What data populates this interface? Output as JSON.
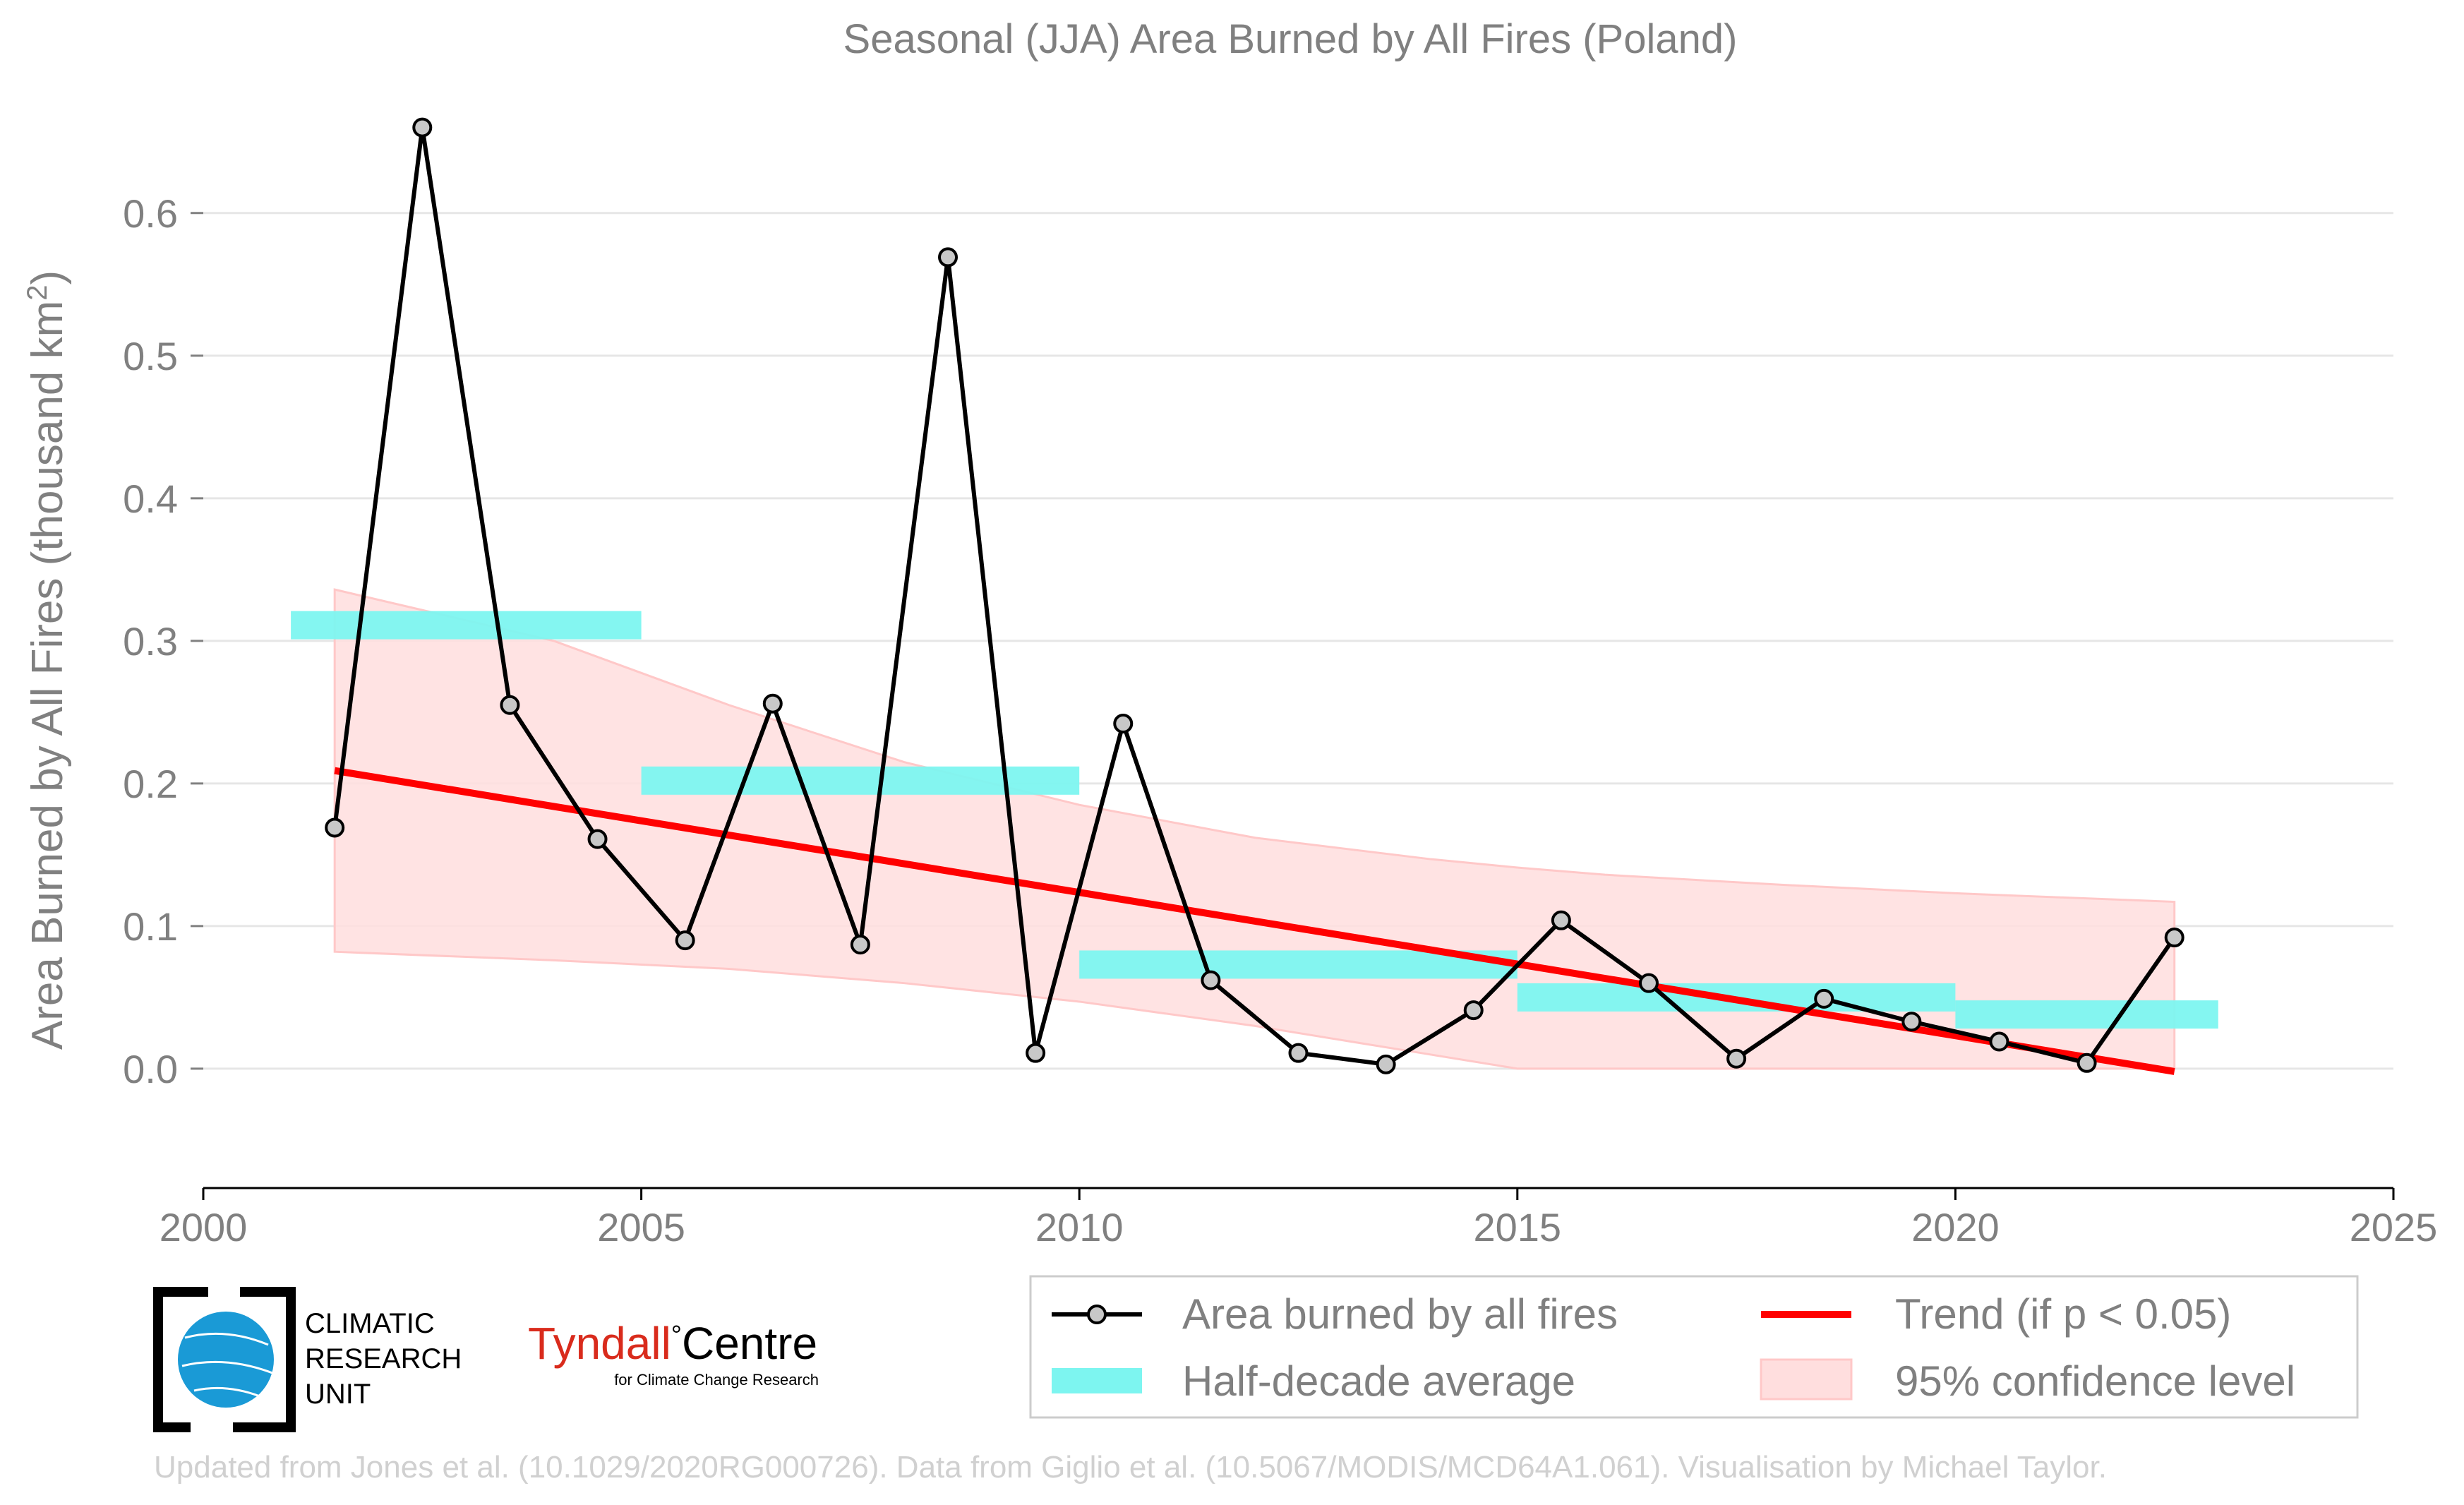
{
  "chart_data": {
    "type": "line",
    "title": "Seasonal (JJA) Area Burned by All Fires (Poland)",
    "ylabel_main": "Area Burned by All Fires (thousand km",
    "ylabel_sup": "2",
    "ylabel_end": ")",
    "xlim": [
      2000,
      2025
    ],
    "ylim": [
      -0.055,
      0.69
    ],
    "x_ticks": [
      2000,
      2005,
      2010,
      2015,
      2020,
      2025
    ],
    "x_tick_labels": [
      "2000",
      "2005",
      "2010",
      "2015",
      "2020",
      "2025"
    ],
    "y_ticks": [
      0.0,
      0.1,
      0.2,
      0.3,
      0.4,
      0.5,
      0.6
    ],
    "y_tick_labels": [
      "0.0",
      "0.1",
      "0.2",
      "0.3",
      "0.4",
      "0.5",
      "0.6"
    ],
    "grid": "horizontal",
    "legend_placement": "bottom-right",
    "series": [
      {
        "name": "Area burned by all fires",
        "color": "#000000",
        "marker_fill": "#c8c8c8",
        "x": [
          2001.5,
          2002.5,
          2003.5,
          2004.5,
          2005.5,
          2006.5,
          2007.5,
          2008.5,
          2009.5,
          2010.5,
          2011.5,
          2012.5,
          2013.5,
          2014.5,
          2015.5,
          2016.5,
          2017.5,
          2018.5,
          2019.5,
          2020.5,
          2021.5,
          2022.5
        ],
        "y": [
          0.169,
          0.66,
          0.255,
          0.161,
          0.09,
          0.256,
          0.087,
          0.569,
          0.011,
          0.242,
          0.062,
          0.011,
          0.003,
          0.041,
          0.104,
          0.06,
          0.007,
          0.049,
          0.033,
          0.019,
          0.004,
          0.092
        ]
      }
    ],
    "half_decade_average": {
      "name": "Half-decade average",
      "color": "#7df5f0",
      "segments": [
        {
          "x0": 2001.0,
          "x1": 2005.0,
          "y": 0.311
        },
        {
          "x0": 2005.0,
          "x1": 2010.0,
          "y": 0.202
        },
        {
          "x0": 2010.0,
          "x1": 2015.0,
          "y": 0.073
        },
        {
          "x0": 2015.0,
          "x1": 2020.0,
          "y": 0.05
        },
        {
          "x0": 2020.0,
          "x1": 2023.0,
          "y": 0.038
        }
      ]
    },
    "trend": {
      "name": "Trend (if p < 0.05)",
      "color": "#ff0000",
      "x": [
        2001.5,
        2022.5
      ],
      "y": [
        0.209,
        -0.002
      ]
    },
    "confidence_band": {
      "name": "95% confidence level",
      "color": "#ffc8c8",
      "x": [
        2001.5,
        2004,
        2006,
        2008,
        2010,
        2012,
        2014,
        2015,
        2016,
        2018,
        2020,
        2022.5
      ],
      "upper": [
        0.336,
        0.3,
        0.255,
        0.215,
        0.185,
        0.162,
        0.147,
        0.141,
        0.136,
        0.129,
        0.123,
        0.117
      ],
      "lower": [
        0.082,
        0.076,
        0.07,
        0.06,
        0.047,
        0.03,
        0.01,
        0.0,
        0.0,
        0.0,
        0.0,
        0.0
      ]
    }
  },
  "logos": {
    "cru_line1": "CLIMATIC",
    "cru_line2": "RESEARCH",
    "cru_line3": "UNIT",
    "tyndall_main": "Tyndall",
    "tyndall_degree": "°",
    "tyndall_centre": "Centre",
    "tyndall_sub": "for Climate Change Research"
  },
  "credits": "Updated from Jones et al. (10.1029/2020RG000726). Data from Giglio et al. (10.5067/MODIS/MCD64A1.061). Visualisation by Michael Taylor."
}
